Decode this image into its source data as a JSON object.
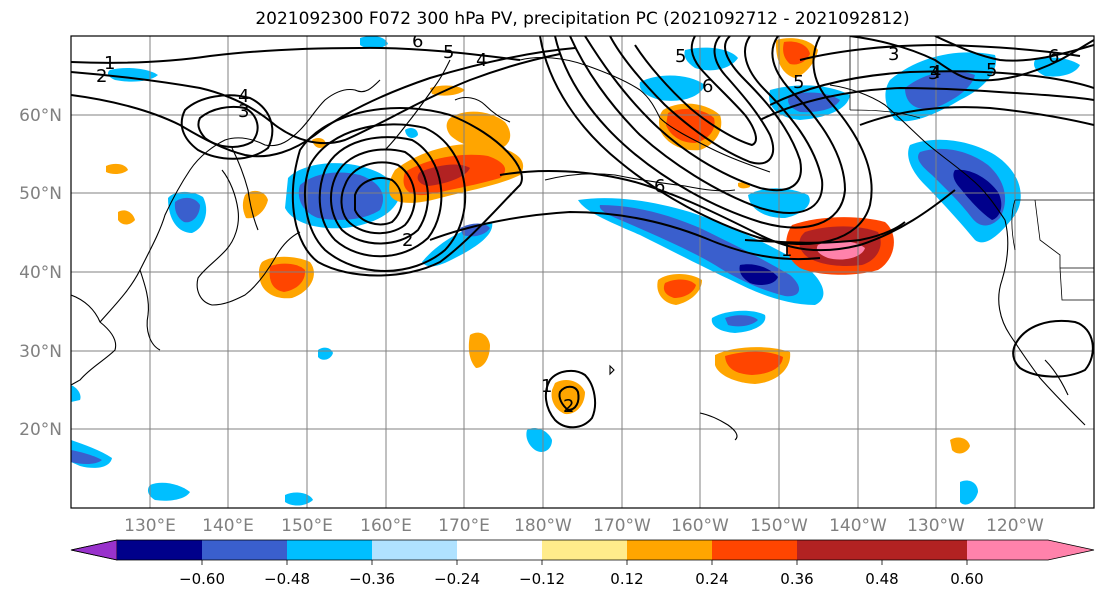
{
  "title": "2021092300 F072 300 hPa PV, precipitation PC (2021092712 - 2021092812)",
  "lat_labels": [
    "60°N",
    "50°N",
    "40°N",
    "30°N",
    "20°N"
  ],
  "lon_labels": [
    "130°E",
    "140°E",
    "150°E",
    "160°E",
    "170°E",
    "180°W",
    "170°W",
    "160°W",
    "150°W",
    "140°W",
    "130°W",
    "120°W"
  ],
  "colorbar": {
    "colors": [
      "#9932cc",
      "#00008b",
      "#3a5fcd",
      "#00bfff",
      "#b0e2ff",
      "#ffffff",
      "#ffec8b",
      "#ffa500",
      "#ff4500",
      "#b22222",
      "#ff82ab"
    ],
    "tick_labels": [
      "−0.60",
      "−0.48",
      "−0.36",
      "−0.24",
      "−0.12",
      "0.12",
      "0.24",
      "0.36",
      "0.48",
      "0.60"
    ]
  },
  "contour_labels": [
    {
      "text": "1"
    },
    {
      "text": "2"
    },
    {
      "text": "6"
    },
    {
      "text": "5"
    },
    {
      "text": "4"
    },
    {
      "text": "4"
    },
    {
      "text": "3"
    },
    {
      "text": "5"
    },
    {
      "text": "3"
    },
    {
      "text": "6"
    },
    {
      "text": "5"
    },
    {
      "text": "6"
    },
    {
      "text": "1"
    },
    {
      "text": "2"
    },
    {
      "text": "1"
    },
    {
      "text": "2"
    },
    {
      "text": "3"
    },
    {
      "text": "4"
    },
    {
      "text": "5"
    },
    {
      "text": "6"
    }
  ]
}
